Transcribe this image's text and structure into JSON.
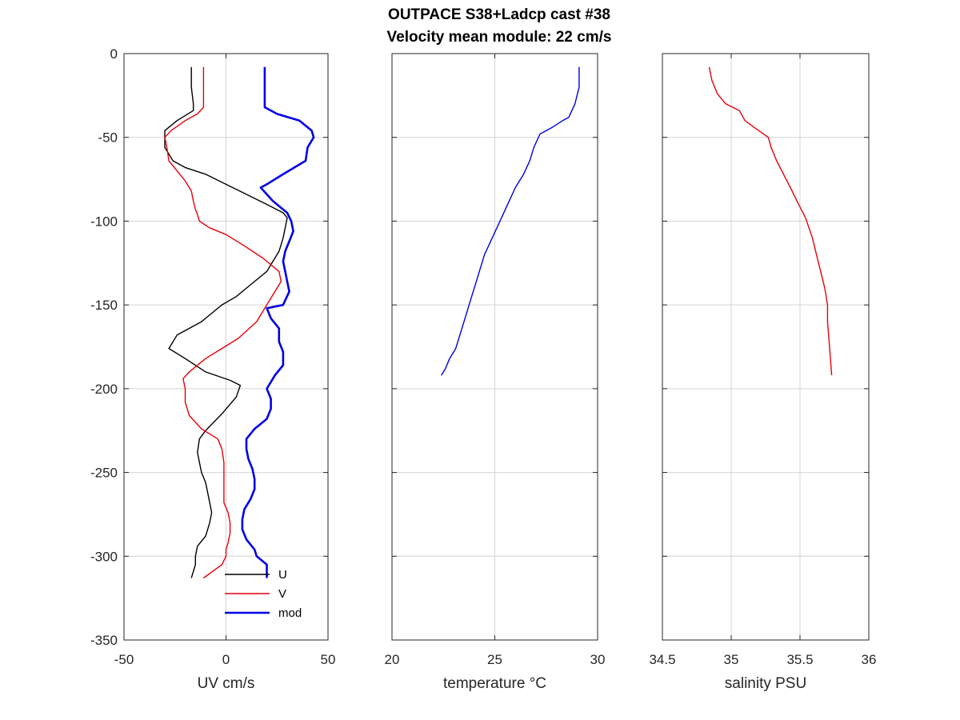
{
  "title_line1": "OUTPACE S38+Ladcp cast #38",
  "title_line2": "Velocity mean module:  22 cm/s",
  "colors": {
    "U": "#000000",
    "V": "#e8000b",
    "mod": "#0000e6",
    "temperature": "#0000e6",
    "salinity": "#e8000b"
  },
  "chart_data": [
    {
      "type": "line",
      "xlabel": "UV cm/s",
      "ylabel": "",
      "xlim": [
        -50,
        50
      ],
      "ylim": [
        -350,
        0
      ],
      "xticks": [
        -50,
        0,
        50
      ],
      "yticks": [
        0,
        -50,
        -100,
        -150,
        -200,
        -250,
        -300,
        -350
      ],
      "grid": true,
      "legend": "bottom-right",
      "series": [
        {
          "name": "U",
          "x": [
            -17,
            -17,
            -16,
            -16,
            -16,
            -24,
            -30,
            -30,
            -30,
            -26,
            -20,
            -10,
            0,
            10,
            20,
            28,
            30,
            29,
            28,
            26,
            20,
            12,
            5,
            -2,
            -12,
            -24,
            -27,
            -28,
            -20,
            -10,
            2,
            7,
            5,
            -2,
            -10,
            -13,
            -14,
            -13,
            -12,
            -10,
            -9,
            -8,
            -7,
            -8,
            -10,
            -14,
            -15,
            -15,
            -17
          ],
          "y": [
            -8,
            -20,
            -30,
            -32,
            -34,
            -40,
            -46,
            -50,
            -56,
            -64,
            -68,
            -72,
            -78,
            -84,
            -90,
            -95,
            -98,
            -104,
            -110,
            -118,
            -130,
            -138,
            -145,
            -150,
            -160,
            -168,
            -174,
            -176,
            -182,
            -190,
            -195,
            -198,
            -205,
            -215,
            -225,
            -230,
            -238,
            -244,
            -250,
            -256,
            -262,
            -268,
            -274,
            -280,
            -288,
            -294,
            -300,
            -305,
            -313
          ]
        },
        {
          "name": "V",
          "x": [
            -11,
            -11,
            -11,
            -11,
            -14,
            -20,
            -27,
            -30,
            -29,
            -28,
            -24,
            -20,
            -17,
            -16,
            -15,
            -14,
            -13,
            -8,
            0,
            8,
            18,
            26,
            27,
            20,
            15,
            6,
            -2,
            -10,
            -18,
            -21,
            -20,
            -20,
            -18,
            -12,
            -4,
            -2,
            -1,
            -1,
            -1,
            -1,
            -1,
            1,
            2,
            2,
            1,
            0,
            0,
            -2,
            -11
          ],
          "y": [
            -8,
            -20,
            -30,
            -32,
            -36,
            -40,
            -46,
            -50,
            -56,
            -64,
            -70,
            -76,
            -82,
            -88,
            -93,
            -96,
            -100,
            -104,
            -108,
            -114,
            -122,
            -130,
            -136,
            -150,
            -160,
            -170,
            -176,
            -182,
            -190,
            -194,
            -200,
            -208,
            -216,
            -224,
            -230,
            -236,
            -244,
            -250,
            -256,
            -262,
            -268,
            -274,
            -280,
            -286,
            -292,
            -296,
            -300,
            -305,
            -313
          ]
        },
        {
          "name": "mod",
          "x": [
            19,
            19,
            19,
            19,
            25,
            36,
            42,
            43,
            40,
            39,
            28,
            20,
            17,
            23,
            30,
            32,
            33,
            31,
            29,
            28,
            29,
            30,
            31,
            28,
            20,
            22,
            26,
            26,
            28,
            28,
            24,
            20,
            22,
            22,
            20,
            14,
            10,
            10,
            11,
            13,
            14,
            14,
            12,
            9,
            8,
            8,
            10,
            14,
            15,
            20,
            20
          ],
          "y": [
            -8,
            -20,
            -30,
            -32,
            -36,
            -40,
            -46,
            -50,
            -56,
            -64,
            -72,
            -78,
            -80,
            -88,
            -95,
            -100,
            -106,
            -112,
            -118,
            -124,
            -130,
            -136,
            -142,
            -150,
            -152,
            -158,
            -164,
            -172,
            -178,
            -186,
            -192,
            -200,
            -206,
            -212,
            -218,
            -224,
            -230,
            -236,
            -242,
            -248,
            -254,
            -260,
            -266,
            -272,
            -278,
            -284,
            -290,
            -296,
            -300,
            -305,
            -313
          ]
        }
      ]
    },
    {
      "type": "line",
      "xlabel": "temperature °C",
      "ylabel": "",
      "xlim": [
        20,
        30
      ],
      "ylim": [
        -350,
        0
      ],
      "xticks": [
        20,
        25,
        30
      ],
      "grid": true,
      "series": [
        {
          "name": "",
          "x": [
            29.1,
            29.1,
            28.9,
            28.6,
            28.3,
            27.8,
            27.2,
            26.9,
            26.7,
            26.4,
            26.0,
            25.7,
            25.4,
            25.1,
            24.8,
            24.5,
            24.3,
            24.1,
            23.9,
            23.7,
            23.5,
            23.3,
            23.1,
            22.8,
            22.6,
            22.4
          ],
          "y": [
            -8,
            -20,
            -30,
            -38,
            -40,
            -44,
            -48,
            -56,
            -64,
            -72,
            -80,
            -88,
            -96,
            -104,
            -112,
            -120,
            -128,
            -136,
            -144,
            -152,
            -160,
            -168,
            -176,
            -182,
            -188,
            -192
          ]
        }
      ]
    },
    {
      "type": "line",
      "xlabel": "salinity PSU",
      "ylabel": "",
      "xlim": [
        34.5,
        36
      ],
      "ylim": [
        -350,
        0
      ],
      "xticks": [
        34.5,
        35,
        35.5,
        36
      ],
      "grid": true,
      "series": [
        {
          "name": "",
          "x": [
            34.84,
            34.86,
            34.9,
            34.96,
            35.06,
            35.1,
            35.2,
            35.27,
            35.29,
            35.33,
            35.38,
            35.43,
            35.49,
            35.54,
            35.59,
            35.62,
            35.65,
            35.68,
            35.7,
            35.7,
            35.71,
            35.73
          ],
          "y": [
            -8,
            -16,
            -24,
            -30,
            -34,
            -40,
            -46,
            -50,
            -56,
            -64,
            -72,
            -80,
            -90,
            -98,
            -110,
            -120,
            -130,
            -140,
            -150,
            -160,
            -170,
            -192
          ]
        }
      ]
    }
  ]
}
